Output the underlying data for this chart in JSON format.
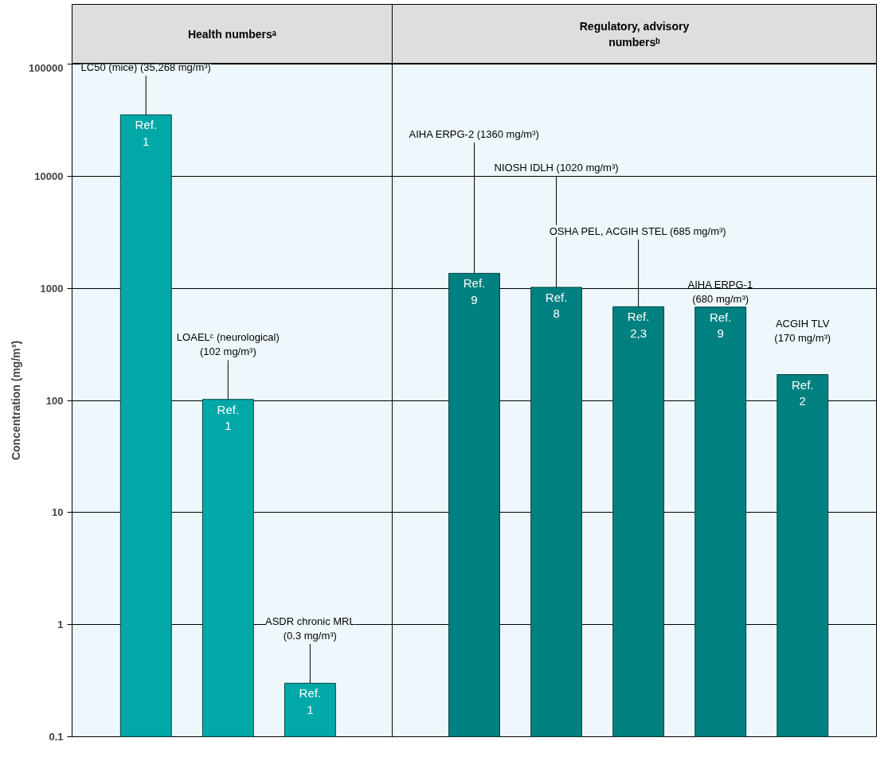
{
  "chart_data": {
    "type": "bar",
    "ylabel": "Concentration (mg/m³)",
    "log": true,
    "grid": "y",
    "categories": [
      null,
      null,
      null,
      null,
      null,
      null,
      null,
      null
    ],
    "values": [
      35268,
      102,
      0.3,
      1360,
      1020,
      685,
      680,
      170
    ],
    "colors": [
      "#00a8a8",
      "#00a8a8",
      "#00a8a8",
      "#008080",
      "#008080",
      "#008080",
      "#008080",
      "#008080"
    ],
    "value_labels": [
      "LC50 (mice) (35,268 mg/m³)",
      "LOAELᶜ (neurological)\n(102 mg/m³)",
      "ASDR chronic MRL\n(0.3 mg/m³)",
      "AIHA ERPG-2 (1360 mg/m³)",
      "NIOSH IDLH (1020 mg/m³)",
      "OSHA PEL, ACGIH STEL (685 mg/m³)",
      "AIHA ERPG-1\n(680 mg/m³)",
      "ACGIH TLV\n(170 mg/m³)"
    ],
    "annotations": [
      "Health numbersᵃ",
      "Regulatory, advisory\nnumbersᵇ",
      "Ref.\n1",
      "Ref.\n1",
      "Ref.\n1",
      "Ref.\n9",
      "Ref.\n8",
      "Ref.\n2,3",
      "Ref.\n9",
      "Ref.\n2"
    ],
    "ylim": [
      0.1,
      100000
    ],
    "yticks": [
      0.1,
      1,
      10,
      100,
      1000,
      10000,
      100000
    ]
  }
}
